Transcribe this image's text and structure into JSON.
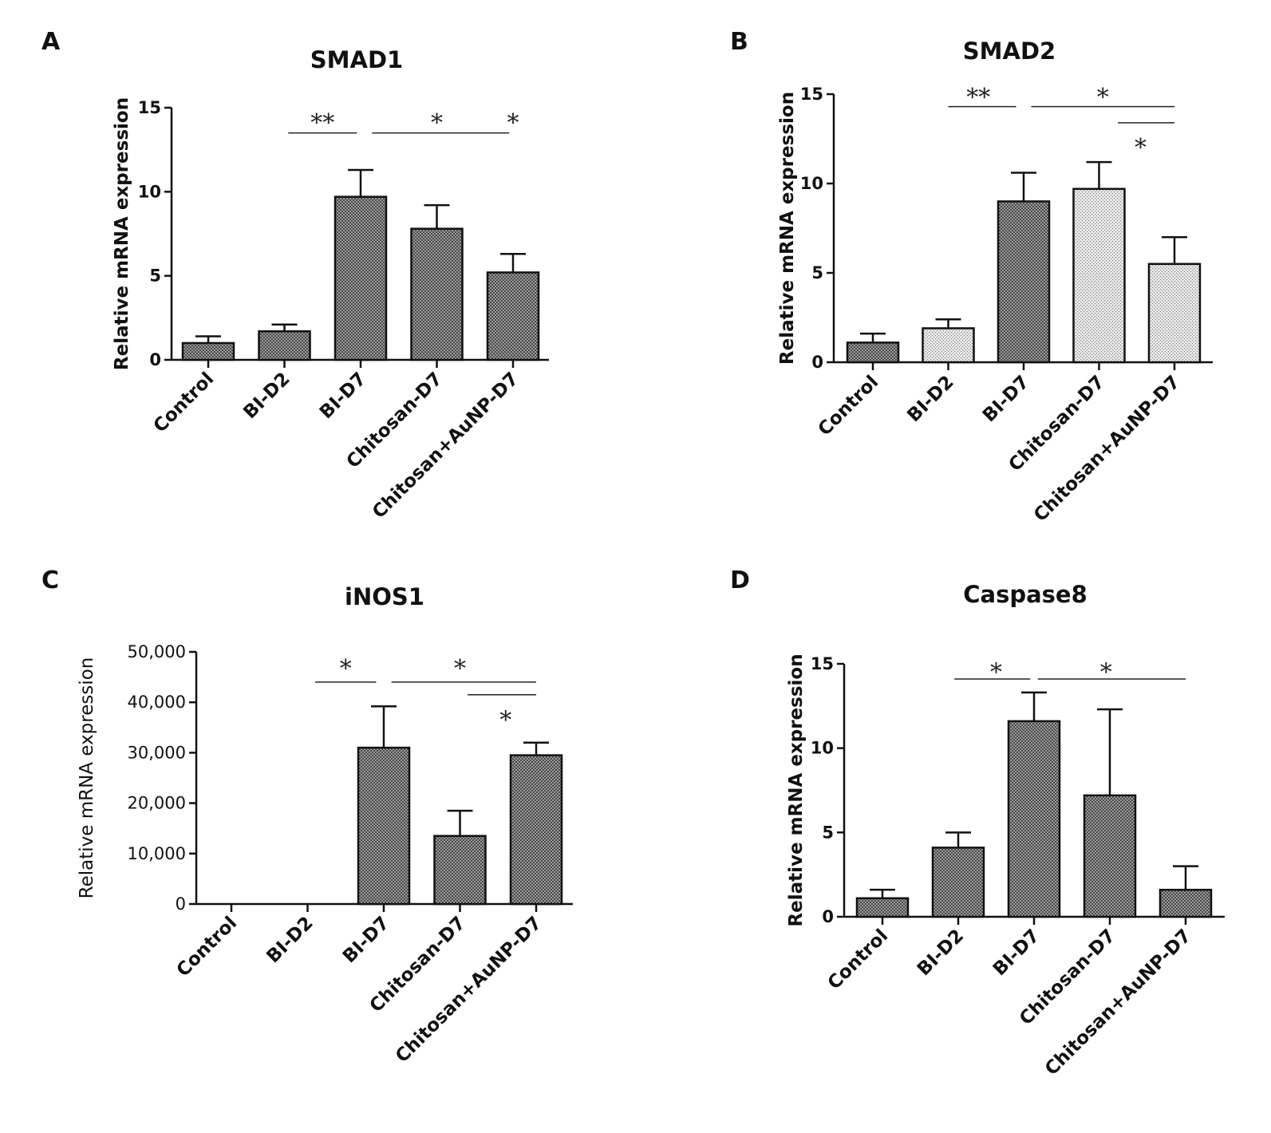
{
  "colors": {
    "bar_dark": "#8c8c8c",
    "bar_light": "#d2d2d2",
    "ink": "#111111"
  },
  "chart_data": [
    {
      "panel": "A",
      "type": "bar",
      "title": "SMAD1",
      "ylabel": "Relative mRNA expression",
      "ylim": [
        0,
        15
      ],
      "yticks": [
        0,
        5,
        10,
        15
      ],
      "ytick_labels": [
        "0",
        "5",
        "10",
        "15"
      ],
      "categories": [
        "Control",
        "BI-D2",
        "BI-D7",
        "Chitosan-D7",
        "Chitosan+AuNP-D7"
      ],
      "values": [
        1.0,
        1.7,
        9.7,
        7.8,
        5.2
      ],
      "errors": [
        0.4,
        0.4,
        1.6,
        1.4,
        1.1
      ],
      "significance": [
        {
          "from": 1.05,
          "to": 1.95,
          "y": 13.5,
          "label": "**",
          "label_x": 1.5,
          "label_y": 14.2
        },
        {
          "from": 2.15,
          "to": 3.95,
          "y": 13.5,
          "label": "*",
          "label_x": 3.0,
          "label_y": 14.2
        },
        {
          "label": "*",
          "label_x": 4.0,
          "label_y": 14.2
        }
      ]
    },
    {
      "panel": "B",
      "type": "bar",
      "title": "SMAD2",
      "ylabel": "Relative mRNA expression",
      "ylim": [
        0,
        15
      ],
      "yticks": [
        0,
        5,
        10,
        15
      ],
      "ytick_labels": [
        "0",
        "5",
        "10",
        "15"
      ],
      "categories": [
        "Control",
        "BI-D2",
        "BI-D7",
        "Chitosan-D7",
        "Chitosan+AuNP-D7"
      ],
      "values": [
        1.1,
        1.9,
        9.0,
        9.7,
        5.5
      ],
      "errors": [
        0.5,
        0.5,
        1.6,
        1.5,
        1.5
      ],
      "significance": [
        {
          "from": 1.0,
          "to": 1.9,
          "y": 14.3,
          "label": "**",
          "label_x": 1.4,
          "label_y": 14.9
        },
        {
          "from": 2.1,
          "to": 4.0,
          "y": 14.3,
          "label": "*",
          "label_x": 3.05,
          "label_y": 14.9
        },
        {
          "from": 3.25,
          "to": 4.0,
          "y": 13.4,
          "label": "*",
          "label_x": 3.55,
          "label_y": 12.1
        }
      ]
    },
    {
      "panel": "C",
      "type": "bar",
      "title": "iNOS1",
      "ylabel": "Relative mRNA expression",
      "ylim": [
        0,
        50000
      ],
      "yticks": [
        0,
        10000,
        20000,
        30000,
        40000,
        50000
      ],
      "ytick_labels": [
        "0",
        "10,000",
        "20,000",
        "30,000",
        "40,000",
        "50,000"
      ],
      "categories": [
        "Control",
        "BI-D2",
        "BI-D7",
        "Chitosan-D7",
        "Chitosan+AuNP-D7"
      ],
      "values": [
        0,
        0,
        31000,
        13500,
        29500
      ],
      "errors": [
        0,
        0,
        8200,
        5000,
        2500
      ],
      "significance": [
        {
          "from": 1.1,
          "to": 1.9,
          "y": 44000,
          "label": "*",
          "label_x": 1.5,
          "label_y": 47000
        },
        {
          "from": 2.1,
          "to": 4.0,
          "y": 44000,
          "label": "*",
          "label_x": 3.0,
          "label_y": 47000
        },
        {
          "from": 3.1,
          "to": 4.0,
          "y": 41500,
          "label": "*",
          "label_x": 3.6,
          "label_y": 36800
        }
      ]
    },
    {
      "panel": "D",
      "type": "bar",
      "title": "Caspase8",
      "ylabel": "Relative mRNA expression",
      "ylim": [
        0,
        15
      ],
      "yticks": [
        0,
        5,
        10,
        15
      ],
      "ytick_labels": [
        "0",
        "5",
        "10",
        "15"
      ],
      "categories": [
        "Control",
        "BI-D2",
        "BI-D7",
        "Chitosan-D7",
        "Chitosan+AuNP-D7"
      ],
      "values": [
        1.1,
        4.1,
        11.6,
        7.2,
        1.6
      ],
      "errors": [
        0.5,
        0.9,
        1.7,
        5.1,
        1.4
      ],
      "significance": [
        {
          "from": 0.95,
          "to": 1.95,
          "y": 14.1,
          "label": "*",
          "label_x": 1.5,
          "label_y": 14.6
        },
        {
          "from": 2.05,
          "to": 4.0,
          "y": 14.1,
          "label": "*",
          "label_x": 2.95,
          "label_y": 14.6
        }
      ]
    }
  ]
}
